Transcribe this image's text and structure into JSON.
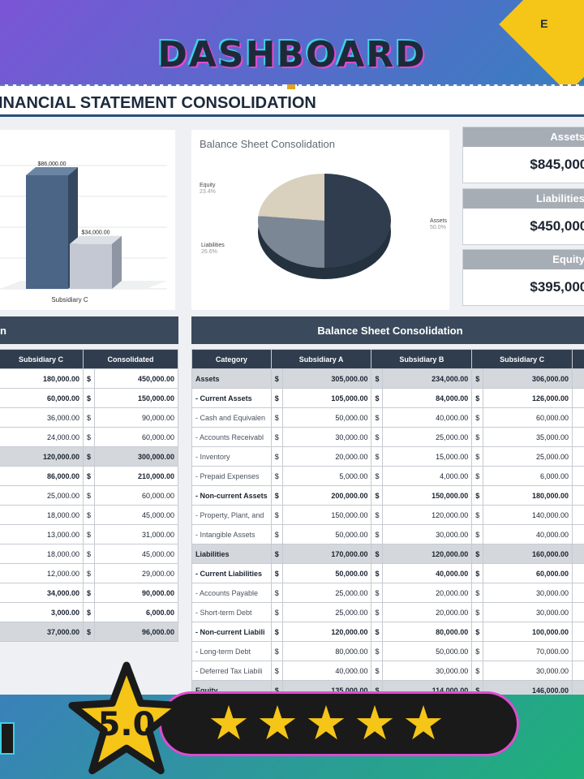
{
  "header": {
    "title": "DASHBOARD",
    "badge": "E"
  },
  "sheet": {
    "title": "INANCIAL STATEMENT CONSOLIDATION"
  },
  "bar_chart": {
    "category_label": "Subsidiary C",
    "bar_labels": [
      "$86,000.00",
      "$34,000.00"
    ],
    "values": [
      86000,
      34000
    ]
  },
  "chart_data": {
    "type": "pie",
    "title": "Balance Sheet Consolidation",
    "slices": [
      {
        "label": "Assets",
        "pct_label": "50.0%",
        "value": 50.0,
        "color": "#2f3d4e"
      },
      {
        "label": "Liabilities",
        "pct_label": "26.6%",
        "value": 26.6,
        "color": "#7b8794"
      },
      {
        "label": "Equity",
        "pct_label": "23.4%",
        "value": 23.4,
        "color": "#d9d0bd"
      }
    ]
  },
  "cards": [
    {
      "label": "Assets",
      "value": "$845,000."
    },
    {
      "label": "Liabilities",
      "value": "$450,000."
    },
    {
      "label": "Equity",
      "value": "$395,000."
    }
  ],
  "left_table": {
    "banner": "n",
    "headers": [
      "Subsidiary C",
      "Consolidated"
    ],
    "rows": [
      {
        "c": "180,000.00",
        "cur": "$",
        "t": "450,000.00",
        "style": "bold"
      },
      {
        "c": "60,000.00",
        "cur": "$",
        "t": "150,000.00",
        "style": "bold"
      },
      {
        "c": "36,000.00",
        "cur": "$",
        "t": "90,000.00",
        "style": ""
      },
      {
        "c": "24,000.00",
        "cur": "$",
        "t": "60,000.00",
        "style": ""
      },
      {
        "c": "120,000.00",
        "cur": "$",
        "t": "300,000.00",
        "style": "sum"
      },
      {
        "c": "86,000.00",
        "cur": "$",
        "t": "210,000.00",
        "style": "bold"
      },
      {
        "c": "25,000.00",
        "cur": "$",
        "t": "60,000.00",
        "style": ""
      },
      {
        "c": "18,000.00",
        "cur": "$",
        "t": "45,000.00",
        "style": ""
      },
      {
        "c": "13,000.00",
        "cur": "$",
        "t": "31,000.00",
        "style": ""
      },
      {
        "c": "18,000.00",
        "cur": "$",
        "t": "45,000.00",
        "style": ""
      },
      {
        "c": "12,000.00",
        "cur": "$",
        "t": "29,000.00",
        "style": ""
      },
      {
        "c": "34,000.00",
        "cur": "$",
        "t": "90,000.00",
        "style": "bold"
      },
      {
        "c": "3,000.00",
        "cur": "$",
        "t": "6,000.00",
        "style": "bold"
      },
      {
        "c": "37,000.00",
        "cur": "$",
        "t": "96,000.00",
        "style": "sum"
      }
    ]
  },
  "right_table": {
    "banner": "Balance Sheet Consolidation",
    "headers": [
      "Category",
      "Subsidiary A",
      "Subsidiary B",
      "Subsidiary C"
    ],
    "rows": [
      {
        "cat": "Assets",
        "a": "305,000.00",
        "b": "234,000.00",
        "c": "306,000.00",
        "style": "sum"
      },
      {
        "cat": "- Current Assets",
        "a": "105,000.00",
        "b": "84,000.00",
        "c": "126,000.00",
        "style": "bold"
      },
      {
        "cat": "- Cash and Equivalen",
        "a": "50,000.00",
        "b": "40,000.00",
        "c": "60,000.00",
        "style": ""
      },
      {
        "cat": "- Accounts Receivabl",
        "a": "30,000.00",
        "b": "25,000.00",
        "c": "35,000.00",
        "style": ""
      },
      {
        "cat": "- Inventory",
        "a": "20,000.00",
        "b": "15,000.00",
        "c": "25,000.00",
        "style": ""
      },
      {
        "cat": "- Prepaid Expenses",
        "a": "5,000.00",
        "b": "4,000.00",
        "c": "6,000.00",
        "style": ""
      },
      {
        "cat": "- Non-current Assets",
        "a": "200,000.00",
        "b": "150,000.00",
        "c": "180,000.00",
        "style": "bold"
      },
      {
        "cat": "- Property, Plant, and",
        "a": "150,000.00",
        "b": "120,000.00",
        "c": "140,000.00",
        "style": ""
      },
      {
        "cat": "- Intangible Assets",
        "a": "50,000.00",
        "b": "30,000.00",
        "c": "40,000.00",
        "style": ""
      },
      {
        "cat": "Liabilities",
        "a": "170,000.00",
        "b": "120,000.00",
        "c": "160,000.00",
        "style": "sum"
      },
      {
        "cat": "- Current Liabilities",
        "a": "50,000.00",
        "b": "40,000.00",
        "c": "60,000.00",
        "style": "bold"
      },
      {
        "cat": "- Accounts Payable",
        "a": "25,000.00",
        "b": "20,000.00",
        "c": "30,000.00",
        "style": ""
      },
      {
        "cat": "- Short-term Debt",
        "a": "25,000.00",
        "b": "20,000.00",
        "c": "30,000.00",
        "style": ""
      },
      {
        "cat": "- Non-current Liabili",
        "a": "120,000.00",
        "b": "80,000.00",
        "c": "100,000.00",
        "style": "bold"
      },
      {
        "cat": "- Long-term Debt",
        "a": "80,000.00",
        "b": "50,000.00",
        "c": "70,000.00",
        "style": ""
      },
      {
        "cat": "- Deferred Tax Liabili",
        "a": "40,000.00",
        "b": "30,000.00",
        "c": "30,000.00",
        "style": ""
      },
      {
        "cat": "Equity",
        "a": "135,000.00",
        "b": "114,000.00",
        "c": "146,000.00",
        "style": "sum"
      }
    ]
  },
  "rating": {
    "score": "5.0",
    "stars": [
      "★",
      "★",
      "★",
      "★",
      "★"
    ]
  }
}
